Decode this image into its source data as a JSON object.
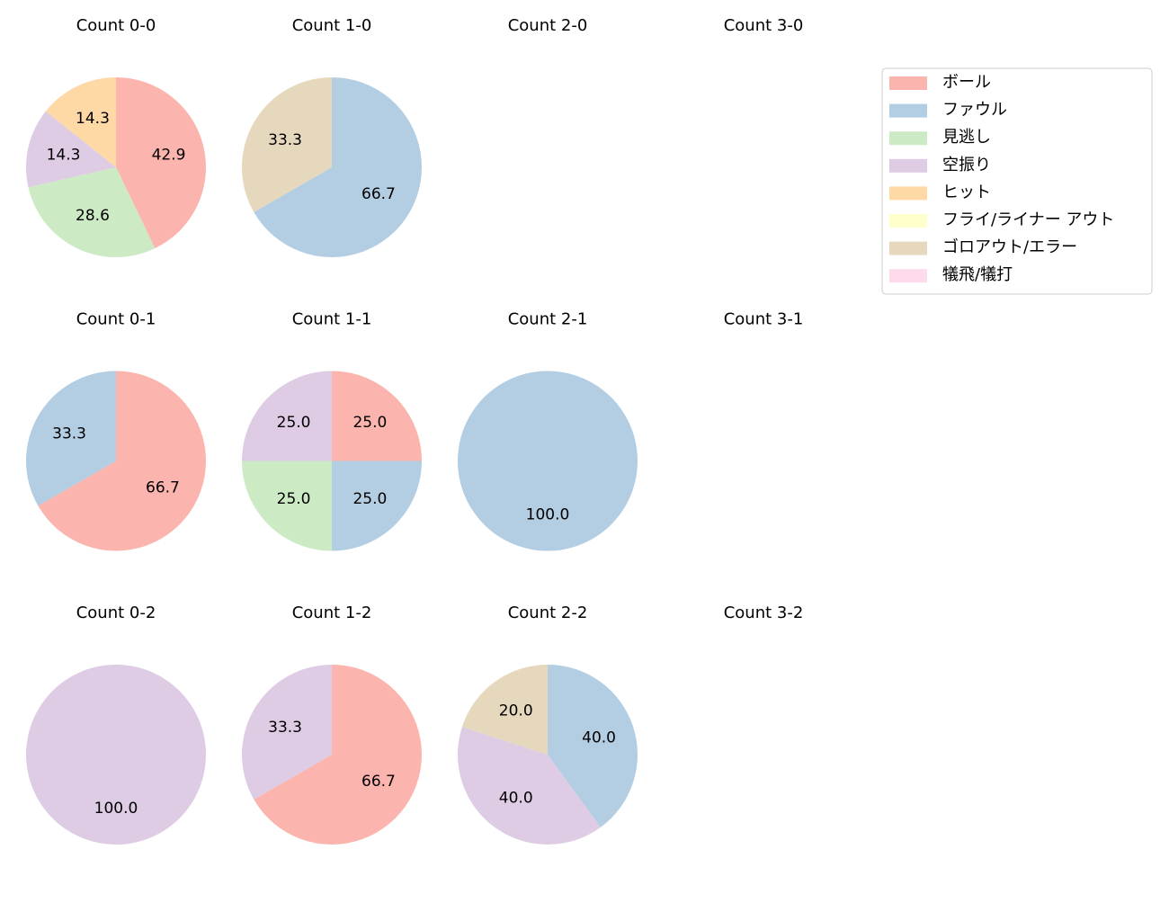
{
  "chart_data": [
    {
      "type": "pie",
      "title": "Count 0-0",
      "categories": [
        "ボール",
        "見逃し",
        "空振り",
        "ヒット"
      ],
      "values": [
        42.9,
        28.6,
        14.3,
        14.3
      ],
      "value_labels": [
        "42.9",
        "28.6",
        "14.3",
        "14.3"
      ],
      "colors": [
        "#fbb4ae",
        "#ccebc5",
        "#decbe4",
        "#fed9a6"
      ]
    },
    {
      "type": "pie",
      "title": "Count 1-0",
      "categories": [
        "ファウル",
        "ゴロアウト/エラー"
      ],
      "values": [
        66.7,
        33.3
      ],
      "value_labels": [
        "66.7",
        "33.3"
      ],
      "colors": [
        "#b3cde3",
        "#e5d8bd"
      ]
    },
    {
      "type": "pie",
      "title": "Count 2-0",
      "categories": [],
      "values": [],
      "value_labels": [],
      "colors": []
    },
    {
      "type": "pie",
      "title": "Count 3-0",
      "categories": [],
      "values": [],
      "value_labels": [],
      "colors": []
    },
    {
      "type": "pie",
      "title": "Count 0-1",
      "categories": [
        "ボール",
        "ファウル"
      ],
      "values": [
        66.7,
        33.3
      ],
      "value_labels": [
        "66.7",
        "33.3"
      ],
      "colors": [
        "#fbb4ae",
        "#b3cde3"
      ]
    },
    {
      "type": "pie",
      "title": "Count 1-1",
      "categories": [
        "ボール",
        "ファウル",
        "見逃し",
        "空振り"
      ],
      "values": [
        25,
        25,
        25,
        25
      ],
      "value_labels": [
        "25.0",
        "25.0",
        "25.0",
        "25.0"
      ],
      "colors": [
        "#fbb4ae",
        "#b3cde3",
        "#ccebc5",
        "#decbe4"
      ]
    },
    {
      "type": "pie",
      "title": "Count 2-1",
      "categories": [
        "ファウル"
      ],
      "values": [
        100
      ],
      "value_labels": [
        "100.0"
      ],
      "colors": [
        "#b3cde3"
      ]
    },
    {
      "type": "pie",
      "title": "Count 3-1",
      "categories": [],
      "values": [],
      "value_labels": [],
      "colors": []
    },
    {
      "type": "pie",
      "title": "Count 0-2",
      "categories": [
        "空振り"
      ],
      "values": [
        100
      ],
      "value_labels": [
        "100.0"
      ],
      "colors": [
        "#decbe4"
      ]
    },
    {
      "type": "pie",
      "title": "Count 1-2",
      "categories": [
        "ボール",
        "空振り"
      ],
      "values": [
        66.7,
        33.3
      ],
      "value_labels": [
        "66.7",
        "33.3"
      ],
      "colors": [
        "#fbb4ae",
        "#decbe4"
      ]
    },
    {
      "type": "pie",
      "title": "Count 2-2",
      "categories": [
        "ファウル",
        "空振り",
        "ゴロアウト/エラー"
      ],
      "values": [
        40,
        40,
        20
      ],
      "value_labels": [
        "40.0",
        "40.0",
        "20.0"
      ],
      "colors": [
        "#b3cde3",
        "#decbe4",
        "#e5d8bd"
      ]
    },
    {
      "type": "pie",
      "title": "Count 3-2",
      "categories": [],
      "values": [],
      "value_labels": [],
      "colors": []
    }
  ],
  "legend": {
    "labels": [
      "ボール",
      "ファウル",
      "見逃し",
      "空振り",
      "ヒット",
      "フライ/ライナー アウト",
      "ゴロアウト/エラー",
      "犠飛/犠打"
    ],
    "colors": [
      "#fbb4ae",
      "#b3cde3",
      "#ccebc5",
      "#decbe4",
      "#fed9a6",
      "#ffffcc",
      "#e5d8bd",
      "#fddaec"
    ]
  }
}
